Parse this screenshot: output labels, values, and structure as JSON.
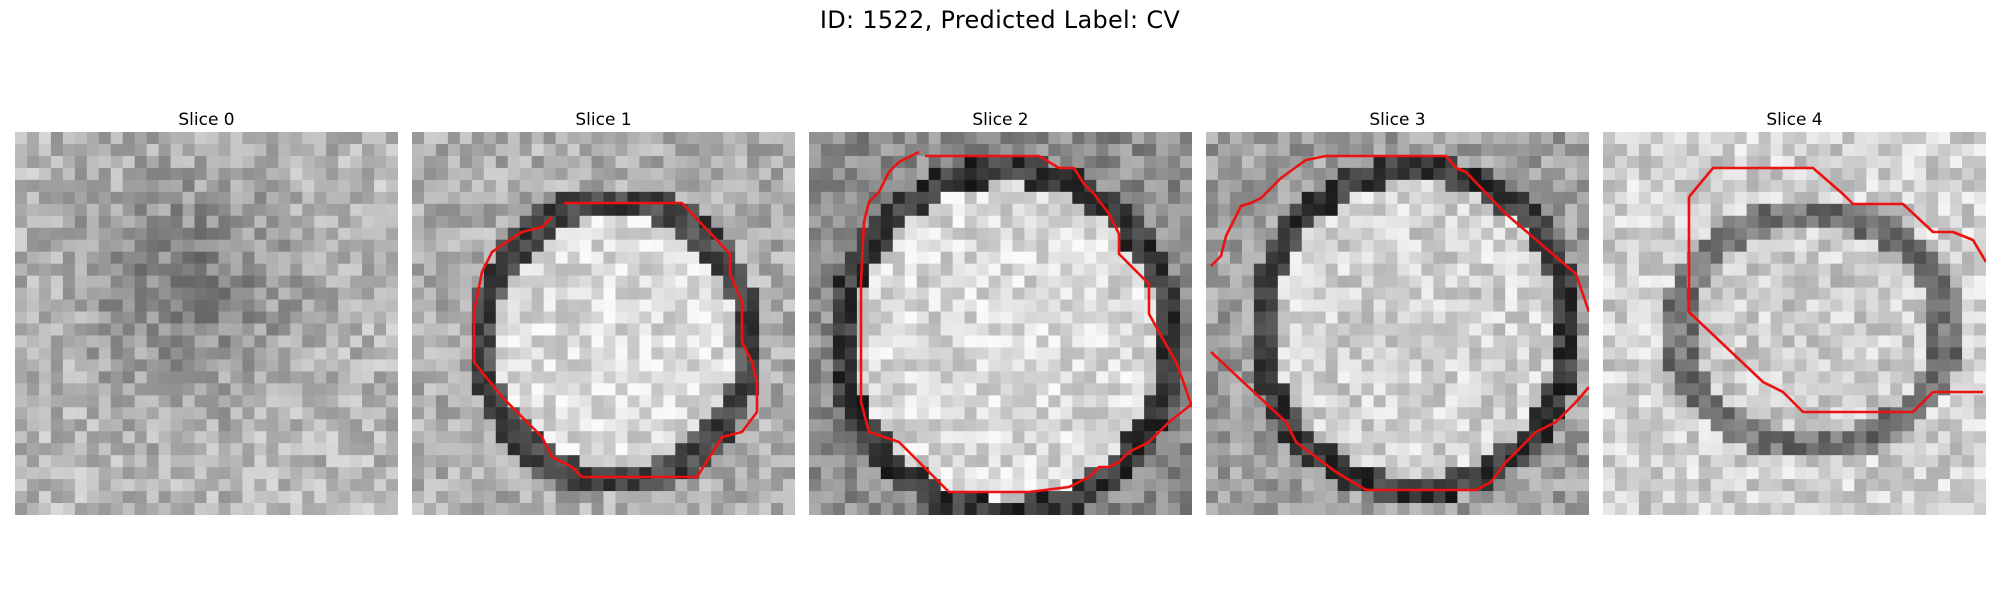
{
  "figure": {
    "title": "ID: 1522, Predicted Label: CV"
  },
  "slices": [
    {
      "title": "Slice 0",
      "has_contour": false
    },
    {
      "title": "Slice 1",
      "has_contour": true
    },
    {
      "title": "Slice 2",
      "has_contour": true
    },
    {
      "title": "Slice 3",
      "has_contour": true
    },
    {
      "title": "Slice 4",
      "has_contour": true
    }
  ],
  "colors": {
    "contour": "#ee1111",
    "background": "#ffffff"
  }
}
